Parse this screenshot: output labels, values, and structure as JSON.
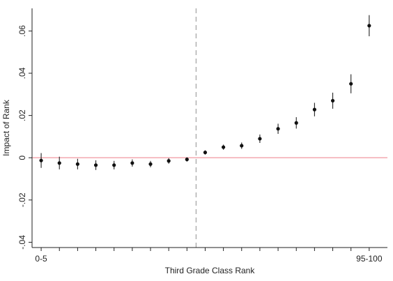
{
  "chart_data": {
    "type": "scatter",
    "xlabel": "Third Grade Class Rank",
    "ylabel": "Impact of Rank",
    "x_tick_labels": [
      {
        "x": 0,
        "label": "0-5"
      },
      {
        "x": 18,
        "label": "95-100"
      }
    ],
    "x_tick_positions": [
      0,
      1,
      2,
      3,
      4,
      5,
      6,
      7,
      8,
      9,
      10,
      11,
      12,
      13,
      14,
      15,
      16,
      17,
      18
    ],
    "y_ticks": [
      -0.04,
      -0.02,
      0,
      0.02,
      0.04,
      0.06
    ],
    "y_tick_labels": [
      "-.04",
      "-.02",
      "0",
      ".02",
      ".04",
      ".06"
    ],
    "xlim": [
      -0.5,
      19
    ],
    "ylim": [
      -0.0425,
      0.0707
    ],
    "horizontal_reference_y": 0,
    "vertical_reference_x": 8.5,
    "points": [
      {
        "x": 0,
        "y": -0.0013,
        "lo": -0.0048,
        "hi": 0.0022
      },
      {
        "x": 1,
        "y": -0.0025,
        "lo": -0.0055,
        "hi": 0.0005
      },
      {
        "x": 2,
        "y": -0.003,
        "lo": -0.0055,
        "hi": -0.0005
      },
      {
        "x": 3,
        "y": -0.0035,
        "lo": -0.0058,
        "hi": -0.0012
      },
      {
        "x": 4,
        "y": -0.0035,
        "lo": -0.0055,
        "hi": -0.0015
      },
      {
        "x": 5,
        "y": -0.0025,
        "lo": -0.0042,
        "hi": -0.0008
      },
      {
        "x": 6,
        "y": -0.003,
        "lo": -0.0045,
        "hi": -0.0015
      },
      {
        "x": 7,
        "y": -0.0015,
        "lo": -0.0028,
        "hi": -0.0002
      },
      {
        "x": 8,
        "y": -0.0008,
        "lo": -0.0018,
        "hi": 0.0002
      },
      {
        "x": 9,
        "y": 0.0025,
        "lo": 0.0015,
        "hi": 0.0035
      },
      {
        "x": 10,
        "y": 0.005,
        "lo": 0.0038,
        "hi": 0.0062
      },
      {
        "x": 11,
        "y": 0.0057,
        "lo": 0.0042,
        "hi": 0.0072
      },
      {
        "x": 12,
        "y": 0.009,
        "lo": 0.007,
        "hi": 0.011
      },
      {
        "x": 13,
        "y": 0.0137,
        "lo": 0.0113,
        "hi": 0.0161
      },
      {
        "x": 14,
        "y": 0.0165,
        "lo": 0.0138,
        "hi": 0.0192
      },
      {
        "x": 15,
        "y": 0.0228,
        "lo": 0.0196,
        "hi": 0.026
      },
      {
        "x": 16,
        "y": 0.027,
        "lo": 0.0232,
        "hi": 0.0308
      },
      {
        "x": 17,
        "y": 0.035,
        "lo": 0.0305,
        "hi": 0.0395
      },
      {
        "x": 18,
        "y": 0.0625,
        "lo": 0.0575,
        "hi": 0.0675
      }
    ],
    "colors": {
      "points": "#111111",
      "zero_line": "#f2a0a8",
      "cutoff_line": "#9a9a9a"
    },
    "grid": false
  }
}
